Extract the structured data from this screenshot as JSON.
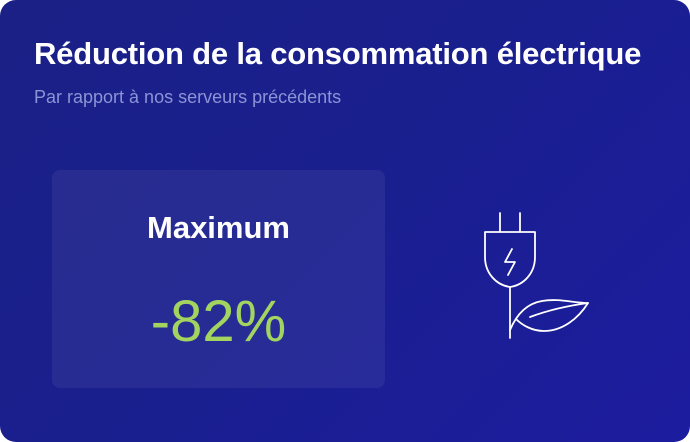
{
  "header": {
    "title": "Réduction de la consommation électrique",
    "subtitle": "Par rapport à nos serveurs précédents"
  },
  "stat": {
    "label": "Maximum",
    "value": "-82%"
  }
}
